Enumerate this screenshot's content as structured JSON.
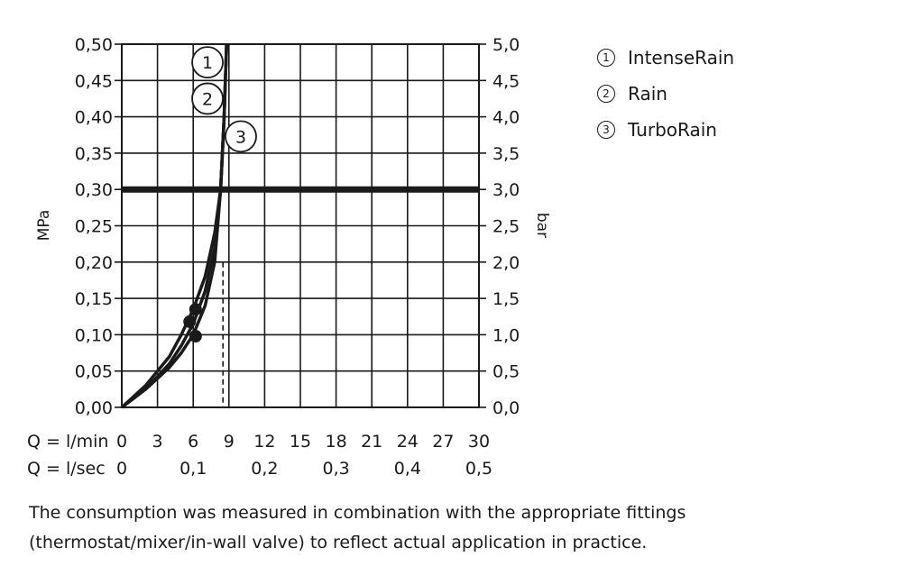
{
  "chart_data": {
    "type": "line",
    "left_axis": {
      "label": "MPa",
      "range": [
        0,
        0.5
      ],
      "ticks": [
        "0,00",
        "0,05",
        "0,10",
        "0,15",
        "0,20",
        "0,25",
        "0,30",
        "0,35",
        "0,40",
        "0,45",
        "0,50"
      ]
    },
    "right_axis": {
      "label": "bar",
      "range": [
        0,
        5
      ],
      "ticks": [
        "0,0",
        "0,5",
        "1,0",
        "1,5",
        "2,0",
        "2,5",
        "3,0",
        "3,5",
        "4,0",
        "4,5",
        "5,0"
      ]
    },
    "x_axis": {
      "range": [
        0,
        30
      ],
      "row1_label": "Q = l/min",
      "row1_ticks": [
        0,
        3,
        6,
        9,
        12,
        15,
        18,
        21,
        24,
        27,
        30
      ],
      "row2_label": "Q = l/sec",
      "row2_ticks": [
        {
          "x": 0,
          "text": "0"
        },
        {
          "x": 6,
          "text": "0,1"
        },
        {
          "x": 12,
          "text": "0,2"
        },
        {
          "x": 18,
          "text": "0,3"
        },
        {
          "x": 24,
          "text": "0,4"
        },
        {
          "x": 30,
          "text": "0,5"
        }
      ]
    },
    "grid": true,
    "reference_line_y": 0.3,
    "dashed_marker_x": 8.5,
    "series": [
      {
        "marker": "1",
        "points": [
          [
            0,
            0
          ],
          [
            2,
            0.025
          ],
          [
            4,
            0.06
          ],
          [
            5,
            0.085
          ],
          [
            6,
            0.115
          ],
          [
            7,
            0.16
          ],
          [
            7.8,
            0.22
          ],
          [
            8.3,
            0.3
          ],
          [
            8.6,
            0.4
          ],
          [
            8.8,
            0.5
          ]
        ]
      },
      {
        "marker": "2",
        "points": [
          [
            0,
            0
          ],
          [
            2,
            0.03
          ],
          [
            4,
            0.07
          ],
          [
            5,
            0.1
          ],
          [
            6,
            0.135
          ],
          [
            7,
            0.18
          ],
          [
            7.8,
            0.24
          ],
          [
            8.3,
            0.3
          ],
          [
            8.6,
            0.4
          ],
          [
            8.8,
            0.5
          ]
        ]
      },
      {
        "marker": "3",
        "points": [
          [
            0,
            0
          ],
          [
            2,
            0.025
          ],
          [
            4,
            0.055
          ],
          [
            5,
            0.075
          ],
          [
            6,
            0.1
          ],
          [
            7,
            0.14
          ],
          [
            7.8,
            0.2
          ],
          [
            8.3,
            0.3
          ],
          [
            8.6,
            0.4
          ],
          [
            8.8,
            0.5
          ]
        ]
      }
    ],
    "points": [
      {
        "x": 5.7,
        "y": 0.118
      },
      {
        "x": 6.2,
        "y": 0.135
      },
      {
        "x": 6.2,
        "y": 0.098
      }
    ],
    "labels": [
      {
        "text": "1",
        "x": 7.2,
        "y": 0.475
      },
      {
        "text": "2",
        "x": 7.2,
        "y": 0.425
      },
      {
        "text": "3",
        "x": 10.0,
        "y": 0.373
      }
    ],
    "legend": [
      {
        "num": "①",
        "name": "IntenseRain"
      },
      {
        "num": "②",
        "name": "Rain"
      },
      {
        "num": "③",
        "name": "TurboRain"
      }
    ],
    "colors": {
      "line": "#1a1a1a",
      "grid": "#1a1a1a"
    }
  },
  "legend_items": [
    {
      "num": "1",
      "name": "IntenseRain"
    },
    {
      "num": "2",
      "name": "Rain"
    },
    {
      "num": "3",
      "name": "TurboRain"
    }
  ],
  "footnote": "The consumption was measured in combination with the appropriate fittings (thermostat/mixer/in-wall valve) to reflect actual application in practice."
}
